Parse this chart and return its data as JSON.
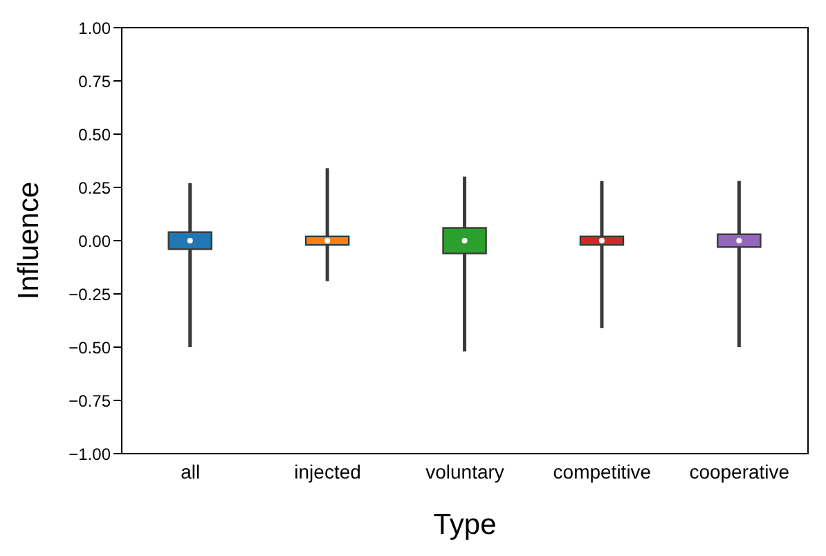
{
  "chart_data": {
    "type": "box",
    "xlabel": "Type",
    "ylabel": "Influence",
    "categories": [
      "all",
      "injected",
      "voluntary",
      "competitive",
      "cooperative"
    ],
    "colors": [
      "#1f77b4",
      "#ff7f0e",
      "#2ca02c",
      "#d62728",
      "#9467bd"
    ],
    "boxes": [
      {
        "low": -0.5,
        "q1": -0.04,
        "median": 0,
        "q3": 0.04,
        "high": 0.27
      },
      {
        "low": -0.19,
        "q1": -0.02,
        "median": 0,
        "q3": 0.02,
        "high": 0.34
      },
      {
        "low": -0.52,
        "q1": -0.06,
        "median": 0,
        "q3": 0.06,
        "high": 0.3
      },
      {
        "low": -0.41,
        "q1": -0.02,
        "median": 0,
        "q3": 0.02,
        "high": 0.28
      },
      {
        "low": -0.5,
        "q1": -0.03,
        "median": 0,
        "q3": 0.03,
        "high": 0.28
      }
    ],
    "ylim": [
      -1,
      1
    ],
    "yticks": [
      {
        "value": -1,
        "label": "−1.00"
      },
      {
        "value": -0.75,
        "label": "−0.75"
      },
      {
        "value": -0.5,
        "label": "−0.50"
      },
      {
        "value": -0.25,
        "label": "−0.25"
      },
      {
        "value": 0,
        "label": "0.00"
      },
      {
        "value": 0.25,
        "label": "0.25"
      },
      {
        "value": 0.5,
        "label": "0.50"
      },
      {
        "value": 0.75,
        "label": "0.75"
      },
      {
        "value": 1,
        "label": "1.00"
      }
    ]
  }
}
